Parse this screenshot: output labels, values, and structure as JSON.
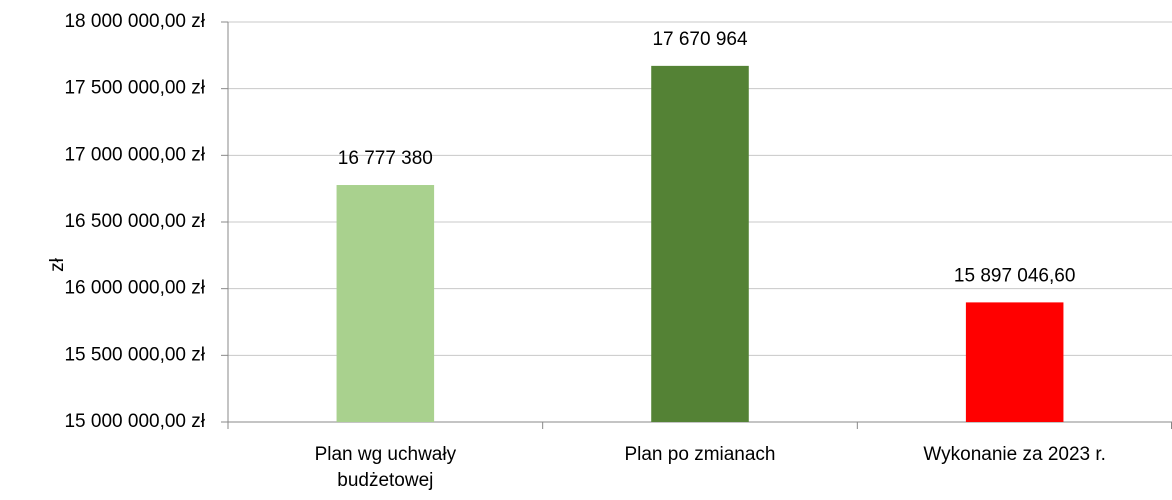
{
  "chart_data": {
    "type": "bar",
    "y_label": "zł",
    "categories": [
      "Plan wg uchwały budżetowej",
      "Plan po zmianach",
      "Wykonanie za 2023 r."
    ],
    "values": [
      16777380,
      17670964,
      15897046.6
    ],
    "value_labels": [
      "16 777 380",
      "17 670 964",
      "15 897 046,60"
    ],
    "colors": [
      "#a9d18e",
      "#548235",
      "#ff0000"
    ],
    "ylim": [
      15000000,
      18000000
    ],
    "yticks": [
      {
        "value": 15000000,
        "label": "15 000 000,00 zł"
      },
      {
        "value": 15500000,
        "label": "15 500 000,00 zł"
      },
      {
        "value": 16000000,
        "label": "16 000 000,00 zł"
      },
      {
        "value": 16500000,
        "label": "16 500 000,00 zł"
      },
      {
        "value": 17000000,
        "label": "17 000 000,00 zł"
      },
      {
        "value": 17500000,
        "label": "17 500 000,00 zł"
      },
      {
        "value": 18000000,
        "label": "18 000 000,00 zł"
      }
    ],
    "grid": true
  }
}
